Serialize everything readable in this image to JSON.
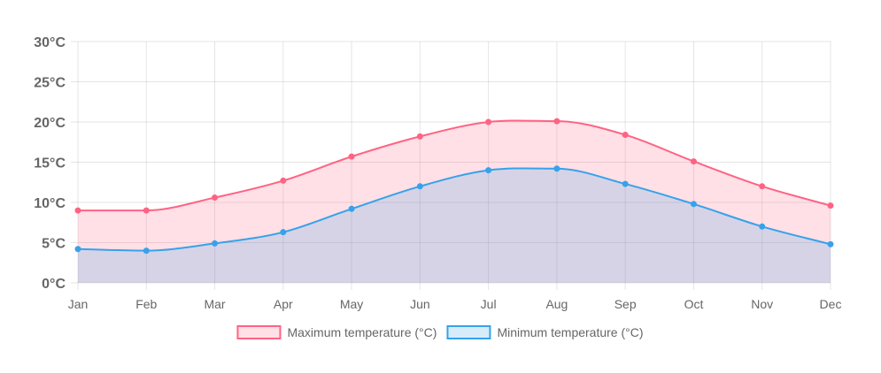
{
  "chart_data": {
    "type": "area",
    "title": "",
    "xlabel": "",
    "ylabel": "",
    "categories": [
      "Jan",
      "Feb",
      "Mar",
      "Apr",
      "May",
      "Jun",
      "Jul",
      "Aug",
      "Sep",
      "Oct",
      "Nov",
      "Dec"
    ],
    "ylim": [
      0,
      30
    ],
    "yticks": [
      0,
      5,
      10,
      15,
      20,
      25,
      30
    ],
    "ytick_labels": [
      "0°C",
      "5°C",
      "10°C",
      "15°C",
      "20°C",
      "25°C",
      "30°C"
    ],
    "grid": true,
    "legend_position": "bottom-center",
    "series": [
      {
        "name": "Maximum temperature (°C)",
        "values": [
          9.0,
          9.0,
          10.6,
          12.7,
          15.7,
          18.2,
          20.0,
          20.1,
          18.4,
          15.1,
          12.0,
          9.6
        ],
        "line_color": "#ff6384",
        "fill_color": "rgba(255, 99, 132, 0.2)"
      },
      {
        "name": "Minimum temperature (°C)",
        "values": [
          4.2,
          4.0,
          4.9,
          6.3,
          9.2,
          12.0,
          14.0,
          14.2,
          12.3,
          9.8,
          7.0,
          4.8
        ],
        "line_color": "#36a2eb",
        "fill_color": "rgba(54, 162, 235, 0.2)"
      }
    ]
  }
}
